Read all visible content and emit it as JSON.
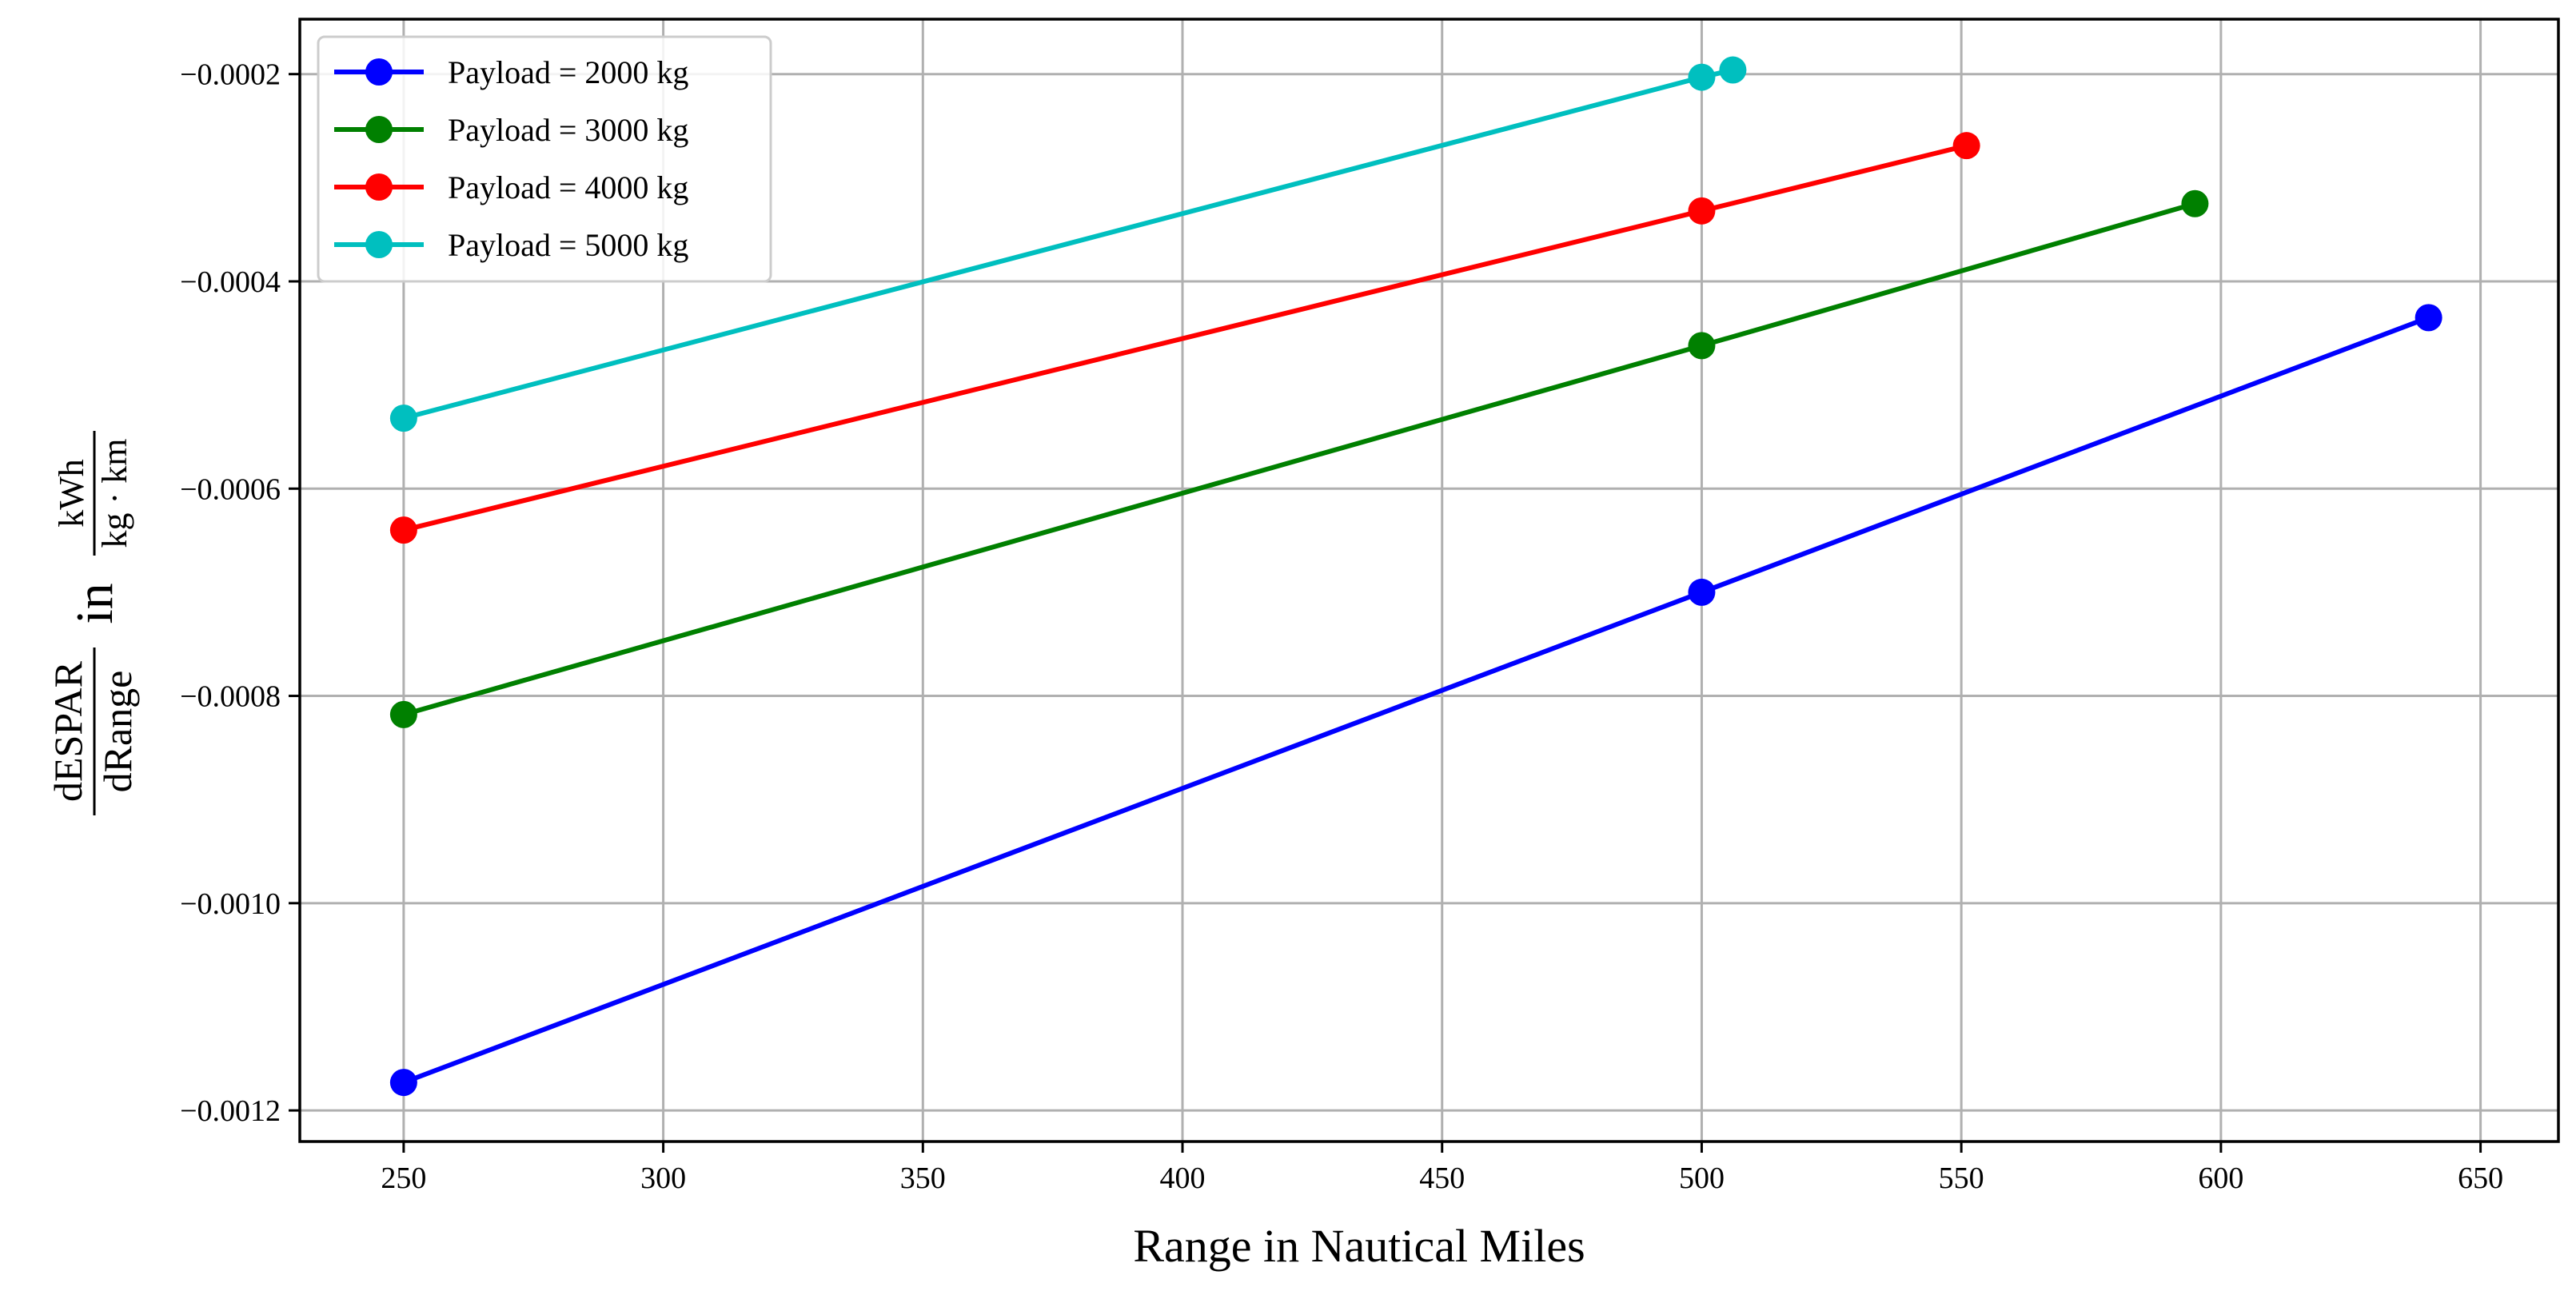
{
  "chart_data": {
    "type": "line",
    "xlabel": "Range in Nautical Miles",
    "ylabel": {
      "numerator": "dESPAR",
      "denominator": "dRange",
      "connector": "in",
      "unit_numerator": "kWh",
      "unit_denominator": "kg · km"
    },
    "xlim": [
      230,
      665
    ],
    "ylim": [
      -0.00123,
      -0.000147
    ],
    "xticks": [
      250,
      300,
      350,
      400,
      450,
      500,
      550,
      600,
      650
    ],
    "xtick_labels": [
      "250",
      "300",
      "350",
      "400",
      "450",
      "500",
      "550",
      "600",
      "650"
    ],
    "yticks": [
      -0.0012,
      -0.001,
      -0.0008,
      -0.0006,
      -0.0004,
      -0.0002
    ],
    "ytick_labels": [
      "−0.0012",
      "−0.0010",
      "−0.0008",
      "−0.0006",
      "−0.0004",
      "−0.0002"
    ],
    "grid": true,
    "legend_position": "top-left",
    "series": [
      {
        "name": "Payload = 2000 kg",
        "color": "#0000ff",
        "x": [
          250,
          500,
          640
        ],
        "y": [
          -0.001173,
          -0.0007,
          -0.000435
        ]
      },
      {
        "name": "Payload = 3000 kg",
        "color": "#008000",
        "x": [
          250,
          500,
          595
        ],
        "y": [
          -0.000818,
          -0.000462,
          -0.000325
        ]
      },
      {
        "name": "Payload = 4000 kg",
        "color": "#ff0000",
        "x": [
          250,
          500,
          551
        ],
        "y": [
          -0.00064,
          -0.000332,
          -0.000269
        ]
      },
      {
        "name": "Payload = 5000 kg",
        "color": "#00bfbf",
        "x": [
          250,
          500,
          506
        ],
        "y": [
          -0.000532,
          -0.000203,
          -0.000196
        ]
      }
    ]
  }
}
